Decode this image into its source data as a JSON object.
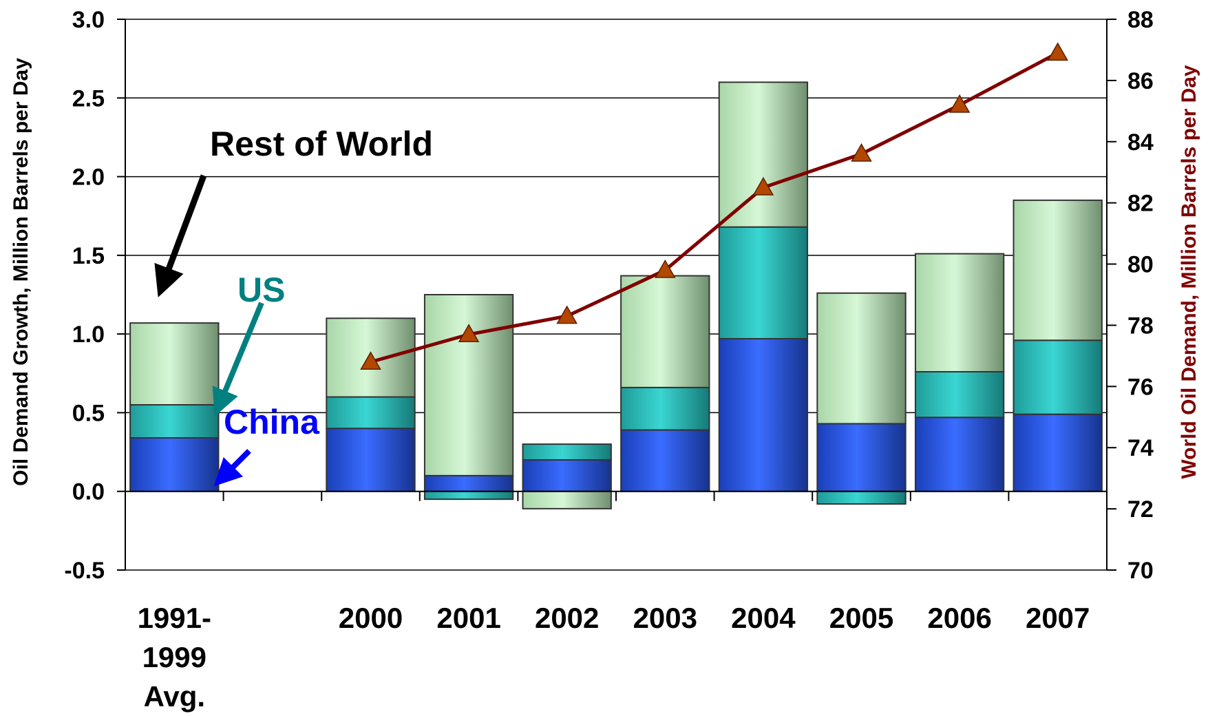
{
  "chart_data": {
    "type": "bar",
    "stacked": true,
    "categories": [
      "1991-\n1999\nAvg.",
      "",
      "2000",
      "2001",
      "2002",
      "2003",
      "2004",
      "2005",
      "2006",
      "2007"
    ],
    "category_lines": [
      [
        "1991-",
        "1999",
        "Avg."
      ],
      [],
      [
        "2000"
      ],
      [
        "2001"
      ],
      [
        "2002"
      ],
      [
        "2003"
      ],
      [
        "2004"
      ],
      [
        "2005"
      ],
      [
        "2006"
      ],
      [
        "2007"
      ]
    ],
    "series": [
      {
        "name": "China",
        "values": [
          0.34,
          null,
          0.4,
          0.1,
          0.2,
          0.39,
          0.97,
          0.43,
          0.47,
          0.49
        ],
        "color": "#3366ff"
      },
      {
        "name": "US",
        "values": [
          0.21,
          null,
          0.2,
          -0.05,
          0.1,
          0.27,
          0.71,
          -0.08,
          0.29,
          0.47
        ],
        "color": "#33cccc"
      },
      {
        "name": "Rest of World",
        "values": [
          0.52,
          null,
          0.5,
          1.15,
          -0.11,
          0.71,
          0.92,
          0.83,
          0.75,
          0.89
        ],
        "color": "#ccffcc"
      }
    ],
    "line_series": {
      "name": "World Oil Demand",
      "axis": "right",
      "values": [
        null,
        null,
        76.8,
        77.7,
        78.3,
        79.8,
        82.5,
        83.6,
        85.2,
        86.9
      ],
      "color": "#800000",
      "marker_color": "#b34700"
    },
    "ylabel": "Oil Demand Growth, Million Barrels per Day",
    "ylabel_right": "World Oil Demand, Million Barrels per Day",
    "ylim": [
      -0.5,
      3.0
    ],
    "ylim_right": [
      70,
      88
    ],
    "yticks": [
      "3.0",
      "2.5",
      "2.0",
      "1.5",
      "1.0",
      "0.5",
      "0.0",
      "-0.5"
    ],
    "yticks_right": [
      "88",
      "86",
      "84",
      "82",
      "80",
      "78",
      "76",
      "74",
      "72",
      "70"
    ],
    "grid": true,
    "annotations": {
      "rest_of_world": "Rest of World",
      "us": "US",
      "china": "China"
    },
    "colors": {
      "china_text": "#0000ff",
      "us_text": "#008080",
      "rest_text": "#000000",
      "right_axis_title": "#800000"
    }
  }
}
